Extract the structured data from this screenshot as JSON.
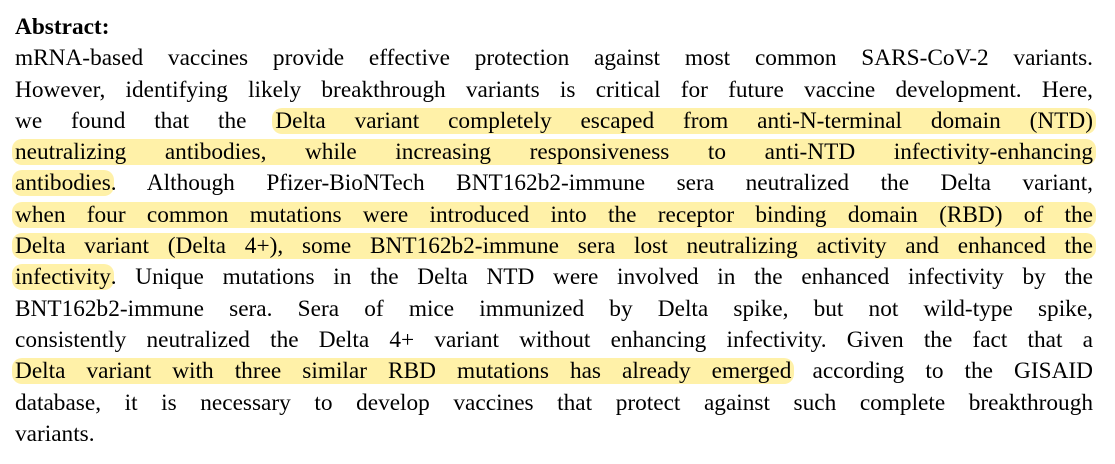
{
  "abstract": {
    "heading": "Abstract:",
    "lines": [
      {
        "segments": [
          {
            "text": "mRNA-based vaccines provide effective protection against most common SARS-CoV-2 variants.",
            "highlight": false
          }
        ]
      },
      {
        "segments": [
          {
            "text": "However, identifying likely breakthrough variants is critical for future vaccine development. Here,",
            "highlight": false
          }
        ]
      },
      {
        "segments": [
          {
            "text": "we found that the ",
            "highlight": false
          },
          {
            "text": "Delta variant completely escaped from anti-N-terminal domain (NTD)",
            "highlight": true
          }
        ]
      },
      {
        "segments": [
          {
            "text": "neutralizing antibodies, while increasing responsiveness to anti-NTD infectivity-enhancing",
            "highlight": true
          }
        ]
      },
      {
        "segments": [
          {
            "text": "antibodies",
            "highlight": true
          },
          {
            "text": ". Although Pfizer-BioNTech BNT162b2-immune sera neutralized the Delta variant,",
            "highlight": false
          }
        ]
      },
      {
        "segments": [
          {
            "text": "when four common mutations were introduced into the receptor binding domain (RBD) of the",
            "highlight": true
          }
        ]
      },
      {
        "segments": [
          {
            "text": "Delta variant (Delta 4+), some BNT162b2-immune sera lost neutralizing activity and enhanced the",
            "highlight": true
          }
        ]
      },
      {
        "segments": [
          {
            "text": "infectivity",
            "highlight": true
          },
          {
            "text": ". Unique mutations in the Delta NTD were involved in the enhanced infectivity by the",
            "highlight": false
          }
        ]
      },
      {
        "segments": [
          {
            "text": "BNT162b2-immune sera. Sera of mice immunized by Delta spike, but not wild-type spike,",
            "highlight": false
          }
        ]
      },
      {
        "segments": [
          {
            "text": "consistently neutralized the Delta 4+ variant without enhancing infectivity. Given the fact that a",
            "highlight": false
          }
        ]
      },
      {
        "segments": [
          {
            "text": "Delta variant with three similar RBD mutations has already emerged",
            "highlight": true
          },
          {
            "text": " according to the GISAID",
            "highlight": false
          }
        ]
      },
      {
        "segments": [
          {
            "text": "database, it is necessary to develop vaccines that protect against such complete breakthrough",
            "highlight": false
          }
        ]
      },
      {
        "segments": [
          {
            "text": "variants.",
            "highlight": false
          }
        ]
      }
    ],
    "highlight_color": "#fff1a8"
  }
}
